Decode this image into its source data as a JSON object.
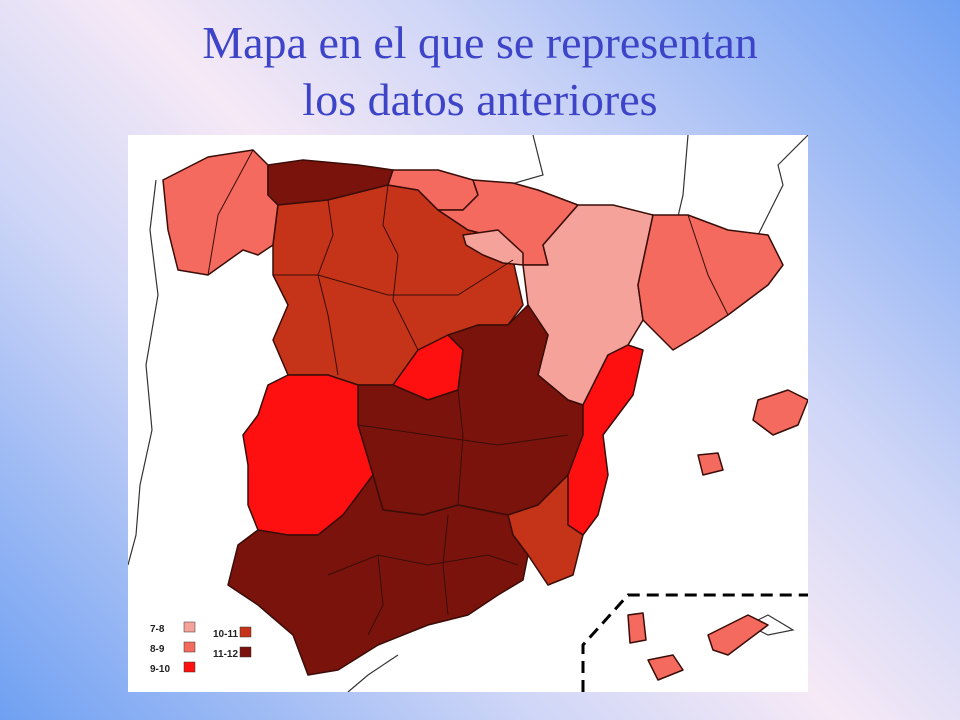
{
  "title": {
    "line1": "Mapa en el que se representan",
    "line2": "los datos anteriores"
  },
  "colors": {
    "class_7_8": "#f5a29a",
    "class_8_9": "#f46a5e",
    "class_9_10": "#ff1010",
    "class_10_11": "#c53418",
    "class_11_12": "#7a130c",
    "border": "#3a0d08",
    "background": "#ffffff"
  },
  "legend": {
    "items": [
      {
        "label": "7-8",
        "color": "#f5a29a"
      },
      {
        "label": "8-9",
        "color": "#f46a5e"
      },
      {
        "label": "9-10",
        "color": "#ff1010"
      },
      {
        "label": "10-11",
        "color": "#c53418"
      },
      {
        "label": "11-12",
        "color": "#7a130c"
      }
    ]
  }
}
